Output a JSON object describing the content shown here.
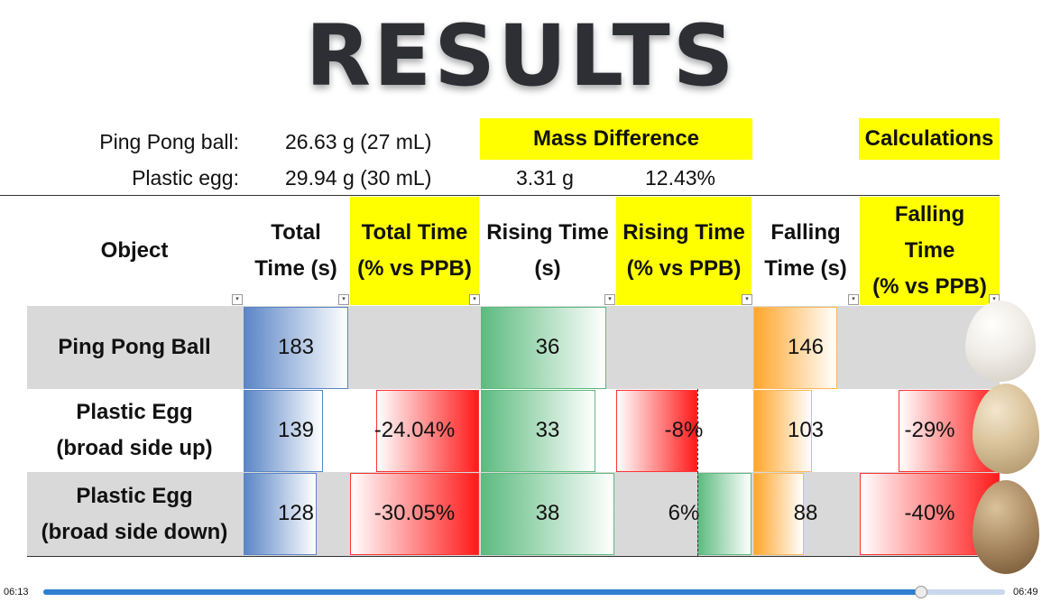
{
  "title": "RESULTS",
  "masses": [
    {
      "label": "Ping Pong ball:",
      "value": "26.63 g (27 mL)"
    },
    {
      "label": "Plastic egg:",
      "value": "29.94 g (30 mL)"
    }
  ],
  "mass_difference": {
    "label": "Mass Difference",
    "grams": "3.31 g",
    "percent": "12.43%"
  },
  "calculations_label": "Calculations",
  "headers": {
    "object": "Object",
    "total_time": [
      "Total",
      "Time (s)"
    ],
    "total_pct": [
      "Total Time",
      "(% vs PPB)"
    ],
    "rising_time": [
      "Rising Time",
      "(s)"
    ],
    "rising_pct": [
      "Rising Time",
      "(% vs PPB)"
    ],
    "falling_time": [
      "Falling",
      "Time (s)"
    ],
    "falling_pct": [
      "Falling",
      "Time",
      "(% vs PPB)"
    ]
  },
  "filter_glyph": "▾",
  "rows": [
    {
      "object": [
        "Ping Pong Ball"
      ],
      "total": "183",
      "total_pct": "",
      "rising": "36",
      "rising_pct": "",
      "falling": "146",
      "falling_pct": "",
      "total_frac": 1.0,
      "rising_frac": 0.94,
      "falling_frac": 0.8
    },
    {
      "object": [
        "Plastic Egg",
        "(broad side up)"
      ],
      "total": "139",
      "total_pct": "-24.04%",
      "rising": "33",
      "rising_pct": "-8%",
      "falling": "103",
      "falling_pct": "-29%",
      "total_frac": 0.76,
      "rising_frac": 0.86,
      "falling_frac": 0.56
    },
    {
      "object": [
        "Plastic Egg",
        "(broad side down)"
      ],
      "total": "128",
      "total_pct": "-30.05%",
      "rising": "38",
      "rising_pct": "6%",
      "falling": "88",
      "falling_pct": "-40%",
      "total_frac": 0.7,
      "rising_frac": 1.0,
      "falling_frac": 0.48
    }
  ],
  "player": {
    "elapsed": "06:13",
    "duration": "06:49",
    "progress": 0.912
  },
  "colors": {
    "yellow": "#ffff00",
    "blue": "#5b86c6",
    "green": "#5dbb7f",
    "orange": "#ffa62b",
    "red": "#ff1a1a",
    "row_gray": "#d9d9d9"
  }
}
